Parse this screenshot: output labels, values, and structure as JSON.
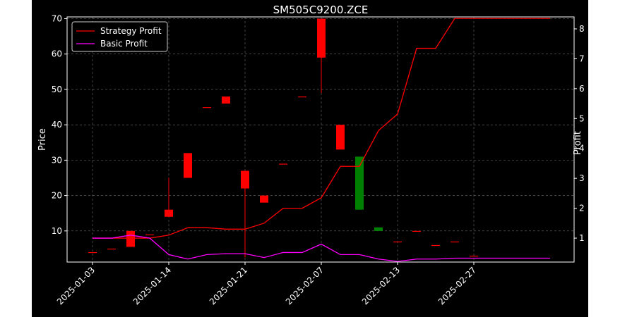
{
  "chart_data": {
    "type": "candlestick+line",
    "title": "SM505C9200.ZCE",
    "xlabel": "",
    "ylabel": "Price",
    "y2label": "Profit",
    "ylim": [
      1.2,
      70.5
    ],
    "y2lim": [
      0.2,
      8.4
    ],
    "y_ticks": [
      10,
      20,
      30,
      40,
      50,
      60,
      70
    ],
    "y2_ticks": [
      1,
      2,
      3,
      4,
      5,
      6,
      7,
      8
    ],
    "x_tick_labels": [
      "2025-01-03",
      "2025-01-14",
      "2025-01-21",
      "2025-02-07",
      "2025-02-13",
      "2025-02-27"
    ],
    "x_tick_index": [
      0,
      4,
      8,
      12,
      16,
      20
    ],
    "grid": true,
    "legend_position": "upper-left",
    "colors": {
      "up": "#008000",
      "down": "#ff0000",
      "strategy": "#ff0000",
      "basic": "#ff00ff",
      "grid": "#6e6e6e"
    },
    "candles": [
      {
        "i": 0,
        "open": 4,
        "close": 4,
        "high": 4,
        "low": 4
      },
      {
        "i": 1,
        "open": 5,
        "close": 5,
        "high": 5,
        "low": 5
      },
      {
        "i": 2,
        "open": 10,
        "close": 5.5,
        "high": 10,
        "low": 5.5
      },
      {
        "i": 3,
        "open": 9,
        "close": 9,
        "high": 9,
        "low": 9
      },
      {
        "i": 4,
        "open": 16,
        "close": 14,
        "high": 25,
        "low": 14
      },
      {
        "i": 5,
        "open": 32,
        "close": 25,
        "high": 32,
        "low": 25
      },
      {
        "i": 6,
        "open": 45,
        "close": 45,
        "high": 45,
        "low": 45
      },
      {
        "i": 7,
        "open": 48,
        "close": 46,
        "high": 48,
        "low": 46
      },
      {
        "i": 8,
        "open": 27,
        "close": 22,
        "high": 27,
        "low": 2.5
      },
      {
        "i": 9,
        "open": 20,
        "close": 18,
        "high": 20,
        "low": 18
      },
      {
        "i": 10,
        "open": 29,
        "close": 29,
        "high": 29,
        "low": 29
      },
      {
        "i": 11,
        "open": 48,
        "close": 48,
        "high": 48,
        "low": 48
      },
      {
        "i": 12,
        "open": 70,
        "close": 59,
        "high": 70,
        "low": 49
      },
      {
        "i": 13,
        "open": 40,
        "close": 33,
        "high": 40,
        "low": 33
      },
      {
        "i": 14,
        "open": 16,
        "close": 31,
        "high": 31,
        "low": 16
      },
      {
        "i": 15,
        "open": 10,
        "close": 11,
        "high": 11,
        "low": 10
      },
      {
        "i": 16,
        "open": 7,
        "close": 7,
        "high": 7,
        "low": 7
      },
      {
        "i": 17,
        "open": 10,
        "close": 10,
        "high": 10,
        "low": 10
      },
      {
        "i": 18,
        "open": 6,
        "close": 6,
        "high": 6,
        "low": 6
      },
      {
        "i": 19,
        "open": 7,
        "close": 7,
        "high": 7,
        "low": 7
      },
      {
        "i": 20,
        "open": 3,
        "close": 3,
        "high": 3,
        "low": 3
      }
    ],
    "series": [
      {
        "name": "Strategy Profit",
        "axis": "right",
        "values": [
          1.0,
          1.0,
          1.0,
          1.0,
          1.1,
          1.35,
          1.35,
          1.3,
          1.3,
          1.5,
          2.0,
          2.0,
          2.35,
          3.4,
          3.4,
          4.6,
          5.15,
          7.35,
          7.35,
          8.35,
          8.35,
          8.35,
          8.35,
          8.35,
          8.35
        ]
      },
      {
        "name": "Basic Profit",
        "axis": "right",
        "values": [
          1.0,
          1.0,
          1.1,
          1.0,
          0.45,
          0.3,
          0.45,
          0.48,
          0.48,
          0.35,
          0.52,
          0.52,
          0.8,
          0.45,
          0.45,
          0.3,
          0.22,
          0.3,
          0.3,
          0.33,
          0.33,
          0.33,
          0.33,
          0.33,
          0.33
        ]
      }
    ]
  }
}
